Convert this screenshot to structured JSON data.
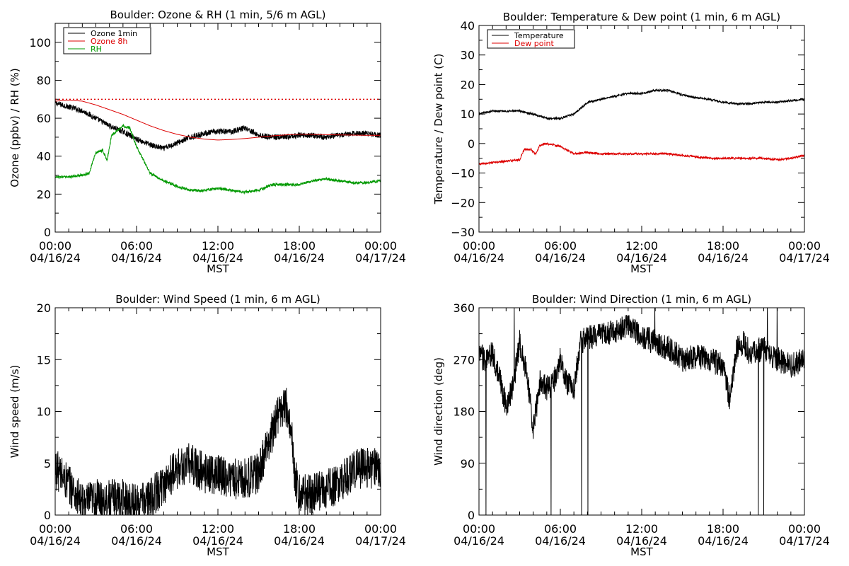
{
  "chart_data": [
    {
      "type": "line",
      "title": "Boulder: Ozone & RH (1 min, 5/6 m AGL)",
      "xlabel": "MST",
      "ylabel": "Ozone (ppbv) / RH (%)",
      "xlim": [
        "04/16/24 00:00",
        "04/17/24 00:00"
      ],
      "ylim": [
        0,
        110
      ],
      "yticks": [
        "0",
        "20",
        "40",
        "60",
        "80",
        "100"
      ],
      "ytick_values": [
        0,
        20,
        40,
        60,
        80,
        100
      ],
      "xticks": [
        {
          "time": "00:00",
          "date": "04/16/24"
        },
        {
          "time": "06:00",
          "date": "04/16/24"
        },
        {
          "time": "12:00",
          "date": "04/16/24"
        },
        {
          "time": "18:00",
          "date": "04/16/24"
        },
        {
          "time": "00:00",
          "date": "04/17/24"
        }
      ],
      "legend": {
        "position": "top-left",
        "entries": [
          {
            "name": "Ozone 1min",
            "color": "#000000"
          },
          {
            "name": "Ozone 8h",
            "color": "#dd0000"
          },
          {
            "name": "RH",
            "color": "#009900"
          }
        ]
      },
      "reference_lines": [
        {
          "y": 70,
          "color": "#dd0000",
          "style": "dotted"
        }
      ],
      "series": [
        {
          "name": "Ozone 1min",
          "color": "#000000",
          "noise": 1.5,
          "x": [
            "00:00",
            "01:00",
            "02:00",
            "03:00",
            "04:00",
            "05:00",
            "06:00",
            "07:00",
            "08:00",
            "09:00",
            "10:00",
            "11:00",
            "12:00",
            "13:00",
            "14:00",
            "15:00",
            "16:00",
            "17:00",
            "18:00",
            "19:00",
            "20:00",
            "21:00",
            "22:00",
            "23:00",
            "24:00"
          ],
          "y": [
            68,
            66,
            64,
            60,
            56,
            53,
            49,
            46,
            44,
            47,
            50,
            52,
            53,
            53,
            55,
            51,
            50,
            50,
            51,
            51,
            50,
            51,
            52,
            52,
            51
          ]
        },
        {
          "name": "Ozone 8h",
          "color": "#dd0000",
          "noise": 0,
          "x": [
            "00:00",
            "01:00",
            "02:00",
            "03:00",
            "04:00",
            "05:00",
            "06:00",
            "07:00",
            "08:00",
            "09:00",
            "10:00",
            "11:00",
            "12:00",
            "13:00",
            "14:00",
            "15:00",
            "16:00",
            "17:00",
            "18:00",
            "19:00",
            "20:00",
            "21:00",
            "22:00",
            "23:00",
            "24:00"
          ],
          "y": [
            69,
            69.5,
            69,
            67,
            64.5,
            62,
            59,
            56,
            53.5,
            51.5,
            50,
            49,
            48.5,
            48.8,
            49.3,
            50,
            50.7,
            51.2,
            51.6,
            51.5,
            51.3,
            51.2,
            51.1,
            51,
            51
          ]
        },
        {
          "name": "RH",
          "color": "#009900",
          "noise": 0.7,
          "x": [
            "00:00",
            "01:00",
            "02:00",
            "02:30",
            "03:00",
            "03:30",
            "03:50",
            "04:10",
            "05:00",
            "05:30",
            "06:00",
            "06:30",
            "07:00",
            "08:00",
            "09:00",
            "10:00",
            "11:00",
            "12:00",
            "13:00",
            "14:00",
            "15:00",
            "16:00",
            "17:00",
            "18:00",
            "19:00",
            "20:00",
            "21:00",
            "22:00",
            "23:00",
            "24:00"
          ],
          "y": [
            29,
            29,
            30,
            31,
            42,
            43,
            38,
            51,
            56,
            55,
            45,
            38,
            31,
            27,
            24,
            22,
            22,
            23,
            22,
            21,
            22,
            25,
            25,
            25,
            27,
            28,
            27,
            26,
            26,
            27
          ]
        }
      ]
    },
    {
      "type": "line",
      "title": "Boulder: Temperature & Dew point (1 min, 6 m AGL)",
      "xlabel": "MST",
      "ylabel": "Temperature / Dew point (C)",
      "xlim": [
        "04/16/24 00:00",
        "04/17/24 00:00"
      ],
      "ylim": [
        -30,
        40
      ],
      "yticks": [
        "−30",
        "−20",
        "−10",
        "0",
        "10",
        "20",
        "30",
        "40"
      ],
      "ytick_values": [
        -30,
        -20,
        -10,
        0,
        10,
        20,
        30,
        40
      ],
      "xticks": [
        {
          "time": "00:00",
          "date": "04/16/24"
        },
        {
          "time": "06:00",
          "date": "04/16/24"
        },
        {
          "time": "12:00",
          "date": "04/16/24"
        },
        {
          "time": "18:00",
          "date": "04/16/24"
        },
        {
          "time": "00:00",
          "date": "04/17/24"
        }
      ],
      "legend": {
        "position": "top-left",
        "entries": [
          {
            "name": "Temperature",
            "color": "#000000"
          },
          {
            "name": "Dew point",
            "color": "#dd0000"
          }
        ]
      },
      "reference_lines": [],
      "series": [
        {
          "name": "Temperature",
          "color": "#000000",
          "noise": 0.35,
          "x": [
            "00:00",
            "01:00",
            "02:00",
            "03:00",
            "04:00",
            "05:00",
            "06:00",
            "07:00",
            "08:00",
            "09:00",
            "10:00",
            "11:00",
            "12:00",
            "13:00",
            "14:00",
            "15:00",
            "16:00",
            "17:00",
            "18:00",
            "19:00",
            "20:00",
            "21:00",
            "22:00",
            "23:00",
            "24:00"
          ],
          "y": [
            10,
            11,
            11,
            11,
            10,
            8.5,
            8.5,
            10,
            14,
            15,
            16,
            17,
            17,
            18,
            18,
            16.5,
            15.5,
            15,
            14,
            13.5,
            13.5,
            14,
            14,
            14.5,
            15
          ]
        },
        {
          "name": "Dew point",
          "color": "#dd0000",
          "noise": 0.35,
          "x": [
            "00:00",
            "01:00",
            "02:00",
            "03:00",
            "03:20",
            "03:50",
            "04:10",
            "04:30",
            "05:00",
            "05:30",
            "06:00",
            "07:00",
            "08:00",
            "09:00",
            "10:00",
            "11:00",
            "12:00",
            "13:00",
            "14:00",
            "15:00",
            "16:00",
            "17:00",
            "18:00",
            "19:00",
            "20:00",
            "21:00",
            "22:00",
            "23:00",
            "24:00"
          ],
          "y": [
            -7,
            -6.5,
            -6,
            -5.5,
            -2,
            -2,
            -3.5,
            -0.5,
            0,
            -0.5,
            -1,
            -3.5,
            -3,
            -3.5,
            -3.5,
            -3.5,
            -3.5,
            -3.5,
            -3.5,
            -4,
            -4.5,
            -5,
            -5,
            -5,
            -5,
            -5,
            -5.5,
            -5,
            -4
          ]
        }
      ]
    },
    {
      "type": "line",
      "title": "Boulder: Wind Speed (1 min, 6 m AGL)",
      "xlabel": "MST",
      "ylabel": "Wind speed (m/s)",
      "xlim": [
        "04/16/24 00:00",
        "04/17/24 00:00"
      ],
      "ylim": [
        0,
        20
      ],
      "yticks": [
        "0",
        "5",
        "10",
        "15",
        "20"
      ],
      "ytick_values": [
        0,
        5,
        10,
        15,
        20
      ],
      "xticks": [
        {
          "time": "00:00",
          "date": "04/16/24"
        },
        {
          "time": "06:00",
          "date": "04/16/24"
        },
        {
          "time": "12:00",
          "date": "04/16/24"
        },
        {
          "time": "18:00",
          "date": "04/16/24"
        },
        {
          "time": "00:00",
          "date": "04/17/24"
        }
      ],
      "legend": null,
      "reference_lines": [],
      "series": [
        {
          "color": "#000000",
          "noise": 2.0,
          "clip": [
            0,
            20
          ],
          "x": [
            "00:00",
            "01:00",
            "02:00",
            "03:00",
            "04:00",
            "05:00",
            "06:00",
            "07:00",
            "08:00",
            "09:00",
            "10:00",
            "11:00",
            "12:00",
            "13:00",
            "14:00",
            "15:00",
            "16:00",
            "16:30",
            "17:00",
            "17:20",
            "17:40",
            "18:00",
            "19:00",
            "20:00",
            "21:00",
            "22:00",
            "23:00",
            "24:00"
          ],
          "y": [
            4.5,
            3,
            1,
            1.5,
            1.5,
            1.5,
            1,
            1.5,
            3,
            4.5,
            5,
            4,
            4,
            3.5,
            3.5,
            4,
            8,
            10,
            10.5,
            9,
            4,
            2,
            2,
            2.5,
            3,
            4.5,
            4.5,
            4.5
          ]
        }
      ]
    },
    {
      "type": "line",
      "title": "Boulder: Wind Direction (1 min, 6 m AGL)",
      "xlabel": "MST",
      "ylabel": "Wind direction (deg)",
      "xlim": [
        "04/16/24 00:00",
        "04/17/24 00:00"
      ],
      "ylim": [
        0,
        360
      ],
      "yticks": [
        "0",
        "90",
        "180",
        "270",
        "360"
      ],
      "ytick_values": [
        0,
        90,
        180,
        270,
        360
      ],
      "xticks": [
        {
          "time": "00:00",
          "date": "04/16/24"
        },
        {
          "time": "06:00",
          "date": "04/16/24"
        },
        {
          "time": "12:00",
          "date": "04/16/24"
        },
        {
          "time": "18:00",
          "date": "04/16/24"
        },
        {
          "time": "00:00",
          "date": "04/17/24"
        }
      ],
      "legend": null,
      "reference_lines": [],
      "series": [
        {
          "color": "#000000",
          "noise": 22,
          "clip": [
            0,
            360
          ],
          "wrap": true,
          "x": [
            "00:00",
            "00:30",
            "01:00",
            "01:30",
            "02:00",
            "02:30",
            "03:00",
            "03:30",
            "04:00",
            "04:30",
            "05:00",
            "05:30",
            "06:00",
            "06:30",
            "07:00",
            "07:30",
            "08:00",
            "09:00",
            "10:00",
            "11:00",
            "12:00",
            "13:00",
            "14:00",
            "15:00",
            "16:00",
            "17:00",
            "18:00",
            "18:30",
            "19:00",
            "19:30",
            "20:00",
            "21:00",
            "22:00",
            "23:00",
            "24:00"
          ],
          "y": [
            280,
            270,
            280,
            240,
            190,
            220,
            300,
            250,
            150,
            230,
            220,
            230,
            270,
            230,
            220,
            300,
            310,
            310,
            320,
            330,
            310,
            300,
            290,
            270,
            275,
            270,
            260,
            200,
            290,
            300,
            280,
            290,
            270,
            260,
            270
          ]
        }
      ]
    }
  ]
}
